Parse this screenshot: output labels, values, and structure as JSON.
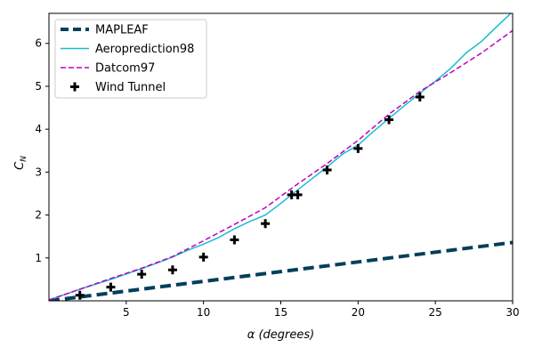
{
  "chart_data": {
    "type": "line",
    "xlabel": "α (degrees)",
    "ylabel_main": "C",
    "ylabel_sub": "N",
    "xlim": [
      0,
      30
    ],
    "ylim": [
      0,
      6.7
    ],
    "xticks": [
      5,
      10,
      15,
      20,
      25,
      30
    ],
    "yticks": [
      1,
      2,
      3,
      4,
      5,
      6
    ],
    "grid": false,
    "legend_position": "top-left",
    "series": [
      {
        "name": "MAPLEAF",
        "style": "dashed-thick",
        "color": "#003f5c",
        "x": [
          0,
          30
        ],
        "y": [
          0,
          1.36
        ]
      },
      {
        "name": "Aeroprediction98",
        "style": "solid",
        "color": "#17becf",
        "x": [
          0,
          2,
          4,
          6,
          7,
          8,
          9,
          10,
          11,
          12,
          13,
          14,
          15,
          16,
          17,
          18,
          19,
          20,
          21,
          22,
          23,
          24,
          25,
          26,
          27,
          28,
          29,
          30
        ],
        "y": [
          0.02,
          0.27,
          0.5,
          0.75,
          0.88,
          1.02,
          1.18,
          1.32,
          1.48,
          1.68,
          1.85,
          2.0,
          2.27,
          2.56,
          2.84,
          3.12,
          3.42,
          3.63,
          3.95,
          4.25,
          4.55,
          4.84,
          5.12,
          5.42,
          5.78,
          6.05,
          6.4,
          6.74
        ]
      },
      {
        "name": "Datcom97",
        "style": "dashed",
        "color": "#c000c0",
        "x": [
          0,
          2,
          4,
          6,
          8,
          10,
          12,
          14,
          16,
          18,
          20,
          22,
          24,
          26,
          28,
          30
        ],
        "y": [
          0.02,
          0.27,
          0.52,
          0.76,
          1.03,
          1.4,
          1.78,
          2.17,
          2.7,
          3.2,
          3.74,
          4.35,
          4.88,
          5.32,
          5.78,
          6.3
        ]
      },
      {
        "name": "Wind Tunnel",
        "style": "markers",
        "color": "#000000",
        "x": [
          2,
          4,
          6,
          8,
          10,
          12,
          14,
          15.7,
          16.1,
          18,
          20,
          22,
          24
        ],
        "y": [
          0.13,
          0.32,
          0.62,
          0.72,
          1.02,
          1.42,
          1.8,
          2.47,
          2.47,
          3.05,
          3.55,
          4.22,
          4.75
        ]
      }
    ]
  }
}
